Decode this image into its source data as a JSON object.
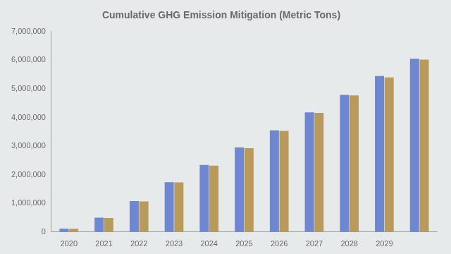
{
  "chart_data": {
    "type": "bar",
    "title": "Cumulative GHG Emission Mitigation (Metric Tons)",
    "categories": [
      "2020",
      "2021",
      "2022",
      "2023",
      "2024",
      "2025",
      "2026",
      "2027",
      "2028",
      "2029",
      null
    ],
    "series": [
      {
        "color": "#6f86d0",
        "values": [
          120000,
          500000,
          1080000,
          1740000,
          2340000,
          2950000,
          3550000,
          4180000,
          4790000,
          5450000,
          6050000
        ]
      },
      {
        "color": "#b89a5c",
        "values": [
          110000,
          490000,
          1070000,
          1730000,
          2320000,
          2930000,
          3530000,
          4160000,
          4770000,
          5400000,
          6020000
        ]
      }
    ],
    "ylim": [
      0,
      7000000
    ],
    "yticks": [
      0,
      {
        "value": 1000000,
        "label": "1,000,000"
      },
      {
        "value": 2000000,
        "label": "2,000,000"
      },
      {
        "value": 3000000,
        "label": "3,000,000"
      },
      {
        "value": 4000000,
        "label": "4,000,000"
      },
      {
        "value": 5000000,
        "label": "5,000,000"
      },
      {
        "value": 6000000,
        "label": "6,000,000"
      },
      {
        "value": 7000000,
        "label": "7,000,000"
      }
    ],
    "grid": false
  }
}
